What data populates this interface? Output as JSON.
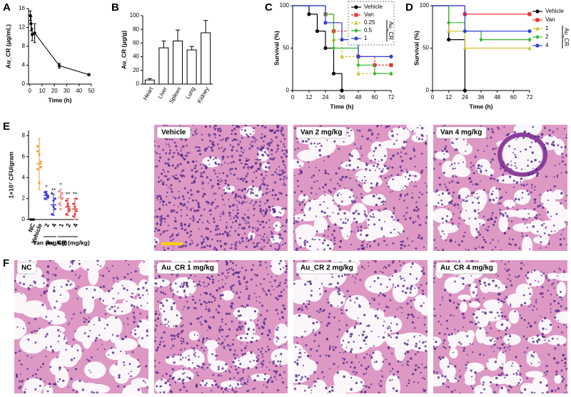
{
  "panel_labels": [
    "A",
    "B",
    "C",
    "D",
    "E",
    "F"
  ],
  "chart_data": [
    {
      "type": "line",
      "x": [
        0.5,
        1,
        2,
        4,
        24,
        48
      ],
      "values": [
        14.5,
        12.8,
        10.5,
        10.8,
        3.9,
        2.0
      ],
      "errors": [
        1.0,
        1.5,
        1.3,
        2.0,
        0.5,
        0.2
      ],
      "color": "#000000",
      "xlabel": "Time (h)",
      "ylabel": "Au_CR (μg/mL)",
      "xlim": [
        -1,
        50
      ],
      "xticks": [
        0,
        10,
        20,
        30,
        40,
        50
      ],
      "ylim": [
        0,
        16
      ],
      "yticks": [
        0,
        4,
        8,
        12,
        16
      ]
    },
    {
      "type": "bar",
      "categories": [
        "Heart",
        "Liver",
        "Spleen",
        "Lung",
        "Kidney"
      ],
      "values": [
        6,
        53,
        63,
        50,
        75
      ],
      "errors": [
        2,
        10,
        16,
        5,
        18
      ],
      "color": "#ffffff",
      "ylabel": "Au_CR (μg/g)",
      "ylim": [
        0,
        100
      ],
      "yticks": [
        0,
        20,
        40,
        60,
        80,
        100
      ]
    },
    {
      "type": "step",
      "xlabel": "Time (h)",
      "ylabel": "Survival (%)",
      "xlim": [
        0,
        72
      ],
      "xticks": [
        0,
        12,
        24,
        36,
        48,
        60,
        72
      ],
      "ylim": [
        0,
        100
      ],
      "yticks": [
        0,
        50,
        100
      ],
      "legend": "upper-right",
      "legend_group": {
        "label": "Au_CR",
        "start": 2,
        "end": 4
      },
      "series": [
        {
          "name": "Vehicle",
          "color": "#000000",
          "marker": "circle",
          "dashed": false,
          "x": [
            0,
            12,
            18,
            24,
            30,
            36
          ],
          "values": [
            100,
            90,
            70,
            50,
            20,
            0
          ]
        },
        {
          "name": "Van",
          "color": "#e8312f",
          "marker": "square",
          "dashed": true,
          "x": [
            0,
            24,
            30,
            48,
            60,
            72
          ],
          "values": [
            100,
            90,
            70,
            40,
            30,
            30
          ]
        },
        {
          "name": "0.25",
          "color": "#c9c22a",
          "marker": "triangle",
          "dashed": true,
          "x": [
            0,
            24,
            30,
            36,
            48,
            72
          ],
          "values": [
            100,
            80,
            60,
            40,
            20,
            20
          ]
        },
        {
          "name": "0.5",
          "color": "#2eb82e",
          "marker": "diamond",
          "dashed": false,
          "x": [
            0,
            24,
            30,
            48,
            60,
            72
          ],
          "values": [
            100,
            90,
            50,
            30,
            20,
            20
          ]
        },
        {
          "name": "1",
          "color": "#2f3fd9",
          "marker": "circle",
          "dashed": false,
          "x": [
            0,
            24,
            36,
            48,
            72
          ],
          "values": [
            100,
            80,
            60,
            40,
            40
          ]
        }
      ]
    },
    {
      "type": "step",
      "xlabel": "Time (h)",
      "ylabel": "Survival (%)",
      "xlim": [
        0,
        72
      ],
      "xticks": [
        0,
        12,
        24,
        36,
        48,
        60,
        72
      ],
      "ylim": [
        0,
        100
      ],
      "yticks": [
        0,
        50,
        100
      ],
      "legend": "outside-right",
      "legend_group": {
        "label": "Au_CR",
        "start": 2,
        "end": 4
      },
      "series": [
        {
          "name": "Vehicle",
          "color": "#000000",
          "marker": "circle",
          "dashed": false,
          "x": [
            0,
            12,
            24
          ],
          "values": [
            100,
            60,
            0
          ]
        },
        {
          "name": "Van",
          "color": "#e8312f",
          "marker": "square",
          "dashed": false,
          "x": [
            0,
            24,
            72
          ],
          "values": [
            100,
            90,
            90
          ]
        },
        {
          "name": "1",
          "color": "#c9c22a",
          "marker": "triangle",
          "dashed": false,
          "x": [
            0,
            12,
            24,
            72
          ],
          "values": [
            100,
            70,
            50,
            50
          ]
        },
        {
          "name": "2",
          "color": "#2eb82e",
          "marker": "diamond",
          "dashed": false,
          "x": [
            0,
            12,
            24,
            36,
            72
          ],
          "values": [
            100,
            80,
            70,
            60,
            60
          ]
        },
        {
          "name": "4",
          "color": "#2f3fd9",
          "marker": "circle",
          "dashed": false,
          "x": [
            0,
            24,
            72
          ],
          "values": [
            100,
            70,
            70
          ]
        }
      ]
    },
    {
      "type": "dot",
      "categories": [
        "NC",
        "Vehicle",
        "2",
        "4",
        "1",
        "2",
        "4"
      ],
      "values": [
        0,
        5.3,
        2.3,
        1.4,
        2.1,
        1.2,
        1.0
      ],
      "errors": [
        0,
        2.4,
        0.4,
        1.0,
        0.8,
        0.8,
        1.0
      ],
      "points": [
        [
          0,
          0,
          0,
          0,
          0,
          0
        ],
        [
          7.0,
          6.2,
          5.5,
          4.8,
          3.5,
          5.0,
          6.5
        ],
        [
          2.6,
          2.4,
          2.2,
          2.0,
          2.5,
          2.1
        ],
        [
          2.5,
          1.8,
          1.0,
          0.5,
          1.2,
          2.0
        ],
        [
          2.7,
          2.3,
          2.0,
          1.5,
          1.0,
          2.5
        ],
        [
          1.8,
          1.3,
          0.8,
          0.5,
          1.5,
          1.0
        ],
        [
          1.5,
          1.2,
          0.8,
          0.3,
          0.5,
          2.0
        ]
      ],
      "colors": [
        "#000000",
        "#f39a2e",
        "#3b3bd6",
        "#3b3bd6",
        "#f08a8a",
        "#e0403a",
        "#e0403a"
      ],
      "annotations": [
        {
          "index": 2,
          "text": "*"
        },
        {
          "index": 3,
          "text": "**"
        },
        {
          "index": 4,
          "text": "*"
        },
        {
          "index": 5,
          "text": "**"
        },
        {
          "index": 6,
          "text": "**"
        }
      ],
      "groups": [
        {
          "label": "Van (mg/kg)",
          "start": 2,
          "end": 3
        },
        {
          "label": "Au_CR (mg/kg)",
          "start": 4,
          "end": 6
        }
      ],
      "ylabel": "1×10⁷ CFU/gram",
      "ylim": [
        0,
        8.5
      ],
      "yticks": [
        0,
        2,
        4,
        6,
        8
      ]
    }
  ],
  "images": [
    {
      "label": "Vehicle"
    },
    {
      "label": "Van 2 mg/kg"
    },
    {
      "label": "Van 4 mg/kg"
    },
    {
      "label": "NC"
    },
    {
      "label": "Au_CR 1 mg/kg"
    },
    {
      "label": "Au_CR 2 mg/kg"
    },
    {
      "label": "Au_CR 4 mg/kg"
    }
  ]
}
